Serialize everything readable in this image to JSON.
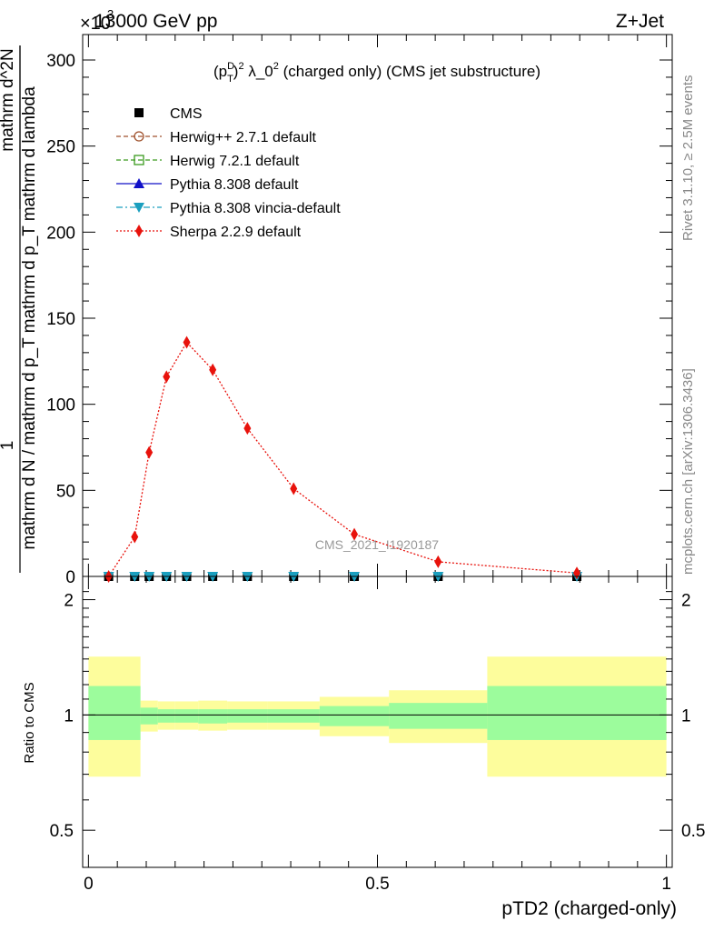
{
  "header": {
    "left": "13000 GeV pp",
    "right": "Z+Jet",
    "multiplier": "×10",
    "multiplier_exp": "3"
  },
  "side_labels": {
    "rivet": "Rivet 3.1.10, ≥ 2.5M events",
    "mcplots": "mcplots.cern.ch [arXiv:1306.3436]"
  },
  "watermark": "CMS_2021_I1920187",
  "chart_data": [
    {
      "type": "line",
      "panel": "main",
      "title": "(p_T^D)^2 λ_0^2 (charged only) (CMS jet substructure)",
      "ylabel_parts": {
        "prefix": "1",
        "numerator": "mathrm d^2N",
        "denominator": "mathrm d N / mathrm d p_T mathrm d p_T mathrm d lambda"
      },
      "ylim": [
        0,
        300000
      ],
      "xlim": [
        -0.01,
        1.01
      ],
      "yticks": [
        0,
        50000,
        100000,
        150000,
        200000,
        250000,
        300000
      ],
      "yticklabels": [
        "0",
        "50",
        "100",
        "150",
        "200",
        "250",
        "300"
      ],
      "legend": {
        "position": "top-left",
        "entries": [
          {
            "label": "CMS",
            "color": "#000000",
            "marker": "square-filled",
            "line": "none"
          },
          {
            "label": "Herwig++ 2.7.1 default",
            "color": "#a0522d",
            "marker": "circle-open",
            "line": "dashed"
          },
          {
            "label": "Herwig 7.2.1 default",
            "color": "#3a9a1e",
            "marker": "square-open",
            "line": "dashed"
          },
          {
            "label": "Pythia 8.308 default",
            "color": "#1010c8",
            "marker": "triangle-filled",
            "line": "solid"
          },
          {
            "label": "Pythia 8.308 vincia-default",
            "color": "#1a9fbf",
            "marker": "triangle-down-filled",
            "line": "dashdot"
          },
          {
            "label": "Sherpa 2.2.9 default",
            "color": "#e8120c",
            "marker": "diamond-filled",
            "line": "dotted"
          }
        ]
      },
      "x": [
        0.035,
        0.08,
        0.105,
        0.135,
        0.17,
        0.215,
        0.275,
        0.355,
        0.46,
        0.605,
        0.845
      ],
      "series": [
        {
          "name": "CMS",
          "color": "#000000",
          "values": [
            0,
            0,
            0,
            0,
            0,
            0,
            0,
            0,
            0,
            0,
            0
          ]
        },
        {
          "name": "Pythia 8.308 vincia-default",
          "color": "#1a9fbf",
          "values": [
            0,
            0,
            0,
            0,
            0,
            0,
            0,
            0,
            0,
            0,
            0
          ]
        },
        {
          "name": "Sherpa 2.2.9 default",
          "color": "#e8120c",
          "values": [
            0,
            23000,
            72000,
            116000,
            136000,
            120000,
            86000,
            51000,
            24500,
            8500,
            2000
          ]
        }
      ]
    },
    {
      "type": "area",
      "panel": "ratio",
      "ylabel": "Ratio to CMS",
      "xlabel": "pTD2 (charged-only)",
      "xlim": [
        -0.01,
        1.01
      ],
      "ylim": [
        0.4,
        2.3
      ],
      "yscale": "log",
      "xticks": [
        0,
        0.5,
        1
      ],
      "xticklabels": [
        "0",
        "0.5",
        "1"
      ],
      "yticks": [
        0.5,
        1,
        2
      ],
      "yticklabels": [
        "0.5",
        "1",
        "2"
      ],
      "reference_line": 1,
      "bins": [
        {
          "lo": 0.0,
          "hi": 0.09,
          "inner": [
            0.86,
            1.19
          ],
          "outer": [
            0.69,
            1.42
          ]
        },
        {
          "lo": 0.09,
          "hi": 0.12,
          "inner": [
            0.945,
            1.045
          ],
          "outer": [
            0.905,
            1.09
          ]
        },
        {
          "lo": 0.12,
          "hi": 0.15,
          "inner": [
            0.955,
            1.035
          ],
          "outer": [
            0.915,
            1.085
          ]
        },
        {
          "lo": 0.15,
          "hi": 0.19,
          "inner": [
            0.955,
            1.035
          ],
          "outer": [
            0.915,
            1.085
          ]
        },
        {
          "lo": 0.19,
          "hi": 0.24,
          "inner": [
            0.95,
            1.035
          ],
          "outer": [
            0.91,
            1.09
          ]
        },
        {
          "lo": 0.24,
          "hi": 0.31,
          "inner": [
            0.955,
            1.035
          ],
          "outer": [
            0.915,
            1.085
          ]
        },
        {
          "lo": 0.31,
          "hi": 0.4,
          "inner": [
            0.955,
            1.035
          ],
          "outer": [
            0.915,
            1.085
          ]
        },
        {
          "lo": 0.4,
          "hi": 0.52,
          "inner": [
            0.935,
            1.055
          ],
          "outer": [
            0.88,
            1.115
          ]
        },
        {
          "lo": 0.52,
          "hi": 0.69,
          "inner": [
            0.92,
            1.075
          ],
          "outer": [
            0.845,
            1.16
          ]
        },
        {
          "lo": 0.69,
          "hi": 1.0,
          "inner": [
            0.86,
            1.19
          ],
          "outer": [
            0.69,
            1.42
          ]
        }
      ],
      "band_colors": {
        "inner": "#9cfc9c",
        "outer": "#fdfd9c"
      }
    }
  ]
}
